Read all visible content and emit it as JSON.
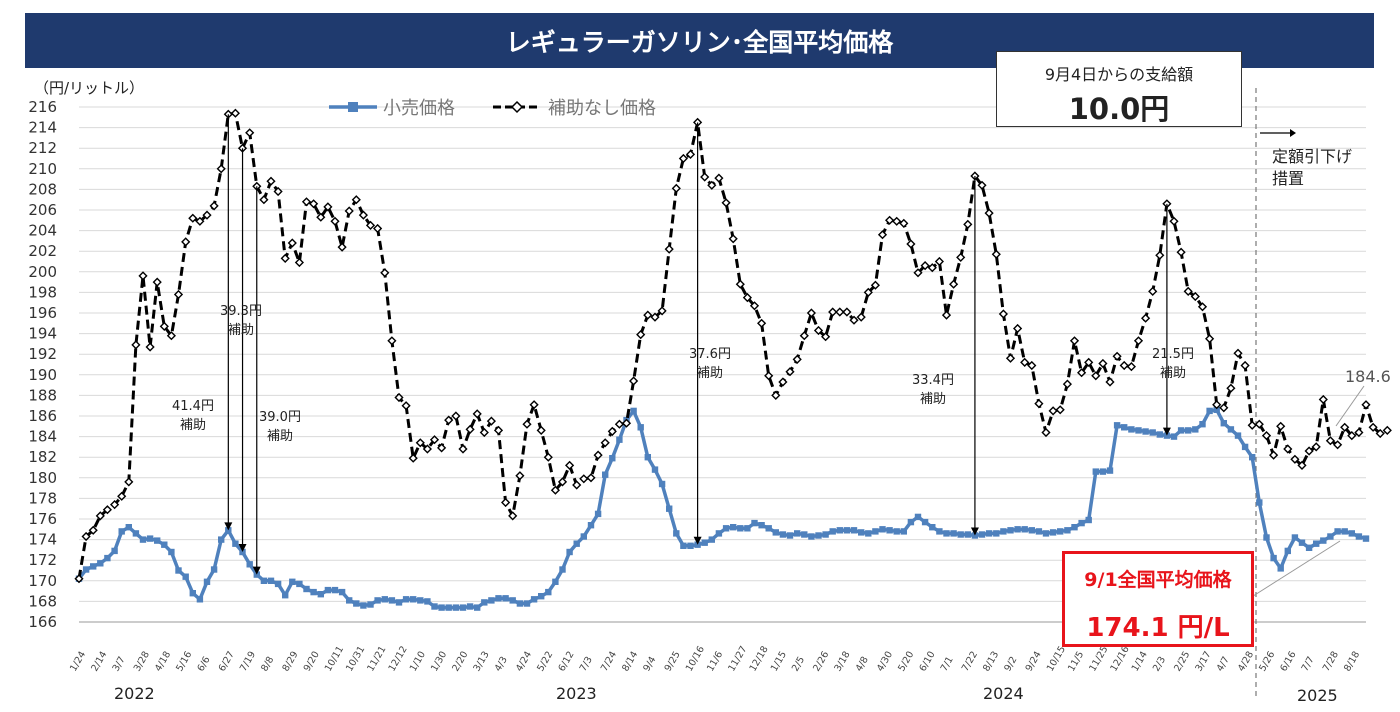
{
  "title": "レギュラーガソリン･全国平均価格",
  "unit_label": "（円/リットル）",
  "subsidy": {
    "label": "9月4日からの支給額",
    "amount": "10.0円"
  },
  "current_price": {
    "label": "9/1全国平均価格",
    "value": "174.1 円/L"
  },
  "measure_note": [
    "定額引下げ",
    "措置"
  ],
  "last_no_subsidy_label": "184.6",
  "years": [
    "2022",
    "2023",
    "2024",
    "2025"
  ],
  "annotations": [
    {
      "lines": [
        "41.4円",
        "補助"
      ]
    },
    {
      "lines": [
        "39.3円",
        "補助"
      ]
    },
    {
      "lines": [
        "39.0円",
        "補助"
      ]
    },
    {
      "lines": [
        "37.6円",
        "補助"
      ]
    },
    {
      "lines": [
        "33.4円",
        "補助"
      ]
    },
    {
      "lines": [
        "21.5円",
        "補助"
      ]
    }
  ],
  "colors": {
    "title_bg": "#1f3a6e",
    "retail": "#4f81bd",
    "no_subsidy": "#000000",
    "highlight": "#e8141b"
  },
  "chart_data": {
    "type": "line",
    "ylim": [
      166,
      216
    ],
    "ytick_step": 2,
    "xtick_labels": [
      "1/24",
      "2/14",
      "3/7",
      "3/28",
      "4/18",
      "5/16",
      "6/6",
      "6/27",
      "7/19",
      "8/8",
      "8/29",
      "9/20",
      "10/11",
      "10/31",
      "11/21",
      "12/12",
      "1/10",
      "1/30",
      "2/20",
      "3/13",
      "4/3",
      "4/24",
      "5/22",
      "6/12",
      "7/3",
      "7/24",
      "8/14",
      "9/4",
      "9/25",
      "10/16",
      "11/6",
      "11/27",
      "12/18",
      "1/15",
      "2/5",
      "2/26",
      "3/18",
      "4/8",
      "4/30",
      "5/20",
      "6/10",
      "7/1",
      "7/22",
      "8/13",
      "9/2",
      "9/24",
      "10/15",
      "11/5",
      "11/25",
      "12/16",
      "1/14",
      "2/3",
      "2/25",
      "3/17",
      "4/7",
      "4/28",
      "5/26",
      "6/16",
      "7/7",
      "7/28",
      "8/18"
    ],
    "series": [
      {
        "name": "小売価格",
        "values": [
          170.2,
          171.1,
          171.4,
          171.7,
          172.2,
          172.9,
          174.8,
          175.2,
          174.6,
          174.0,
          174.1,
          173.9,
          173.5,
          172.8,
          171.0,
          170.4,
          168.8,
          168.2,
          169.9,
          171.1,
          174.0,
          174.9,
          173.6,
          172.8,
          171.6,
          170.6,
          170.0,
          170.0,
          169.7,
          168.6,
          169.9,
          169.7,
          169.2,
          168.9,
          168.7,
          169.1,
          169.1,
          168.9,
          168.1,
          167.8,
          167.6,
          167.7,
          168.1,
          168.2,
          168.1,
          167.9,
          168.2,
          168.2,
          168.1,
          168.0,
          167.5,
          167.4,
          167.4,
          167.4,
          167.4,
          167.5,
          167.4,
          167.9,
          168.1,
          168.3,
          168.3,
          168.1,
          167.8,
          167.8,
          168.2,
          168.5,
          168.9,
          169.9,
          171.1,
          172.8,
          173.6,
          174.3,
          175.4,
          176.5,
          180.3,
          181.9,
          183.7,
          185.6,
          186.5,
          184.9,
          182.0,
          180.8,
          179.4,
          177.0,
          174.6,
          173.4,
          173.4,
          173.5,
          173.7,
          174.0,
          174.6,
          175.1,
          175.2,
          175.1,
          175.1,
          175.6,
          175.4,
          175.1,
          174.7,
          174.5,
          174.4,
          174.6,
          174.5,
          174.3,
          174.4,
          174.5,
          174.8,
          174.9,
          174.9,
          174.9,
          174.7,
          174.6,
          174.8,
          175.0,
          174.9,
          174.8,
          174.8,
          175.7,
          176.2,
          175.7,
          175.2,
          174.8,
          174.6,
          174.6,
          174.5,
          174.5,
          174.4,
          174.5,
          174.6,
          174.6,
          174.8,
          174.9,
          175.0,
          175.0,
          174.9,
          174.8,
          174.6,
          174.7,
          174.8,
          174.9,
          175.2,
          175.6,
          175.9,
          180.6,
          180.6,
          180.7,
          185.1,
          184.9,
          184.7,
          184.6,
          184.5,
          184.4,
          184.2,
          184.1,
          184.0,
          184.6,
          184.6,
          184.7,
          185.2,
          186.5,
          186.6,
          185.3,
          184.7,
          184.1,
          183.0,
          182.0,
          177.6,
          174.2,
          172.2,
          171.2,
          172.9,
          174.2,
          173.7,
          173.2,
          173.6,
          173.9,
          174.3,
          174.8,
          174.8,
          174.6,
          174.3,
          174.1
        ]
      },
      {
        "name": "補助なし価格",
        "values": [
          170.2,
          174.3,
          174.9,
          176.3,
          176.9,
          177.4,
          178.2,
          179.6,
          192.9,
          199.6,
          192.7,
          199.0,
          194.7,
          193.8,
          197.8,
          202.9,
          205.2,
          204.9,
          205.5,
          206.4,
          210.0,
          215.3,
          215.4,
          212.0,
          213.5,
          208.3,
          207.0,
          208.8,
          207.8,
          201.3,
          202.8,
          200.9,
          206.8,
          206.6,
          205.3,
          206.3,
          204.9,
          202.4,
          205.9,
          207.0,
          205.5,
          204.5,
          204.2,
          199.9,
          193.3,
          187.8,
          187.0,
          181.9,
          183.4,
          182.8,
          183.7,
          182.9,
          185.6,
          186.0,
          182.8,
          184.7,
          186.2,
          184.4,
          185.5,
          184.6,
          177.6,
          176.3,
          180.2,
          185.2,
          187.1,
          184.6,
          182.0,
          178.8,
          179.6,
          181.2,
          179.3,
          179.9,
          180.0,
          182.2,
          183.4,
          184.5,
          185.2,
          185.3,
          189.4,
          193.9,
          195.8,
          195.6,
          196.2,
          202.2,
          208.1,
          211.0,
          211.4,
          214.5,
          209.2,
          208.4,
          209.1,
          206.7,
          203.2,
          198.8,
          197.5,
          196.7,
          195.0,
          189.9,
          188.0,
          189.3,
          190.3,
          191.5,
          193.8,
          196.0,
          194.3,
          193.7,
          196.1,
          196.1,
          196.1,
          195.3,
          195.6,
          198.0,
          198.7,
          203.6,
          205.0,
          204.9,
          204.7,
          202.7,
          199.9,
          200.6,
          200.4,
          201.0,
          195.8,
          198.8,
          201.4,
          204.6,
          209.3,
          208.4,
          205.7,
          201.7,
          195.9,
          191.6,
          194.5,
          191.2,
          190.9,
          187.2,
          184.4,
          186.5,
          186.6,
          189.1,
          193.3,
          190.2,
          191.2,
          189.9,
          191.1,
          189.3,
          191.8,
          190.9,
          190.8,
          193.3,
          195.5,
          198.1,
          201.6,
          206.6,
          204.9,
          201.9,
          198.1,
          197.6,
          196.6,
          193.5,
          187.1,
          186.8,
          188.7,
          192.1,
          190.9,
          185.1,
          185.2,
          184.1,
          182.2,
          185.0,
          182.8,
          181.8,
          181.2,
          182.6,
          183.0,
          187.6,
          183.6,
          183.2,
          184.9,
          184.1,
          184.4,
          187.1,
          184.9,
          184.3,
          184.6
        ]
      }
    ]
  }
}
